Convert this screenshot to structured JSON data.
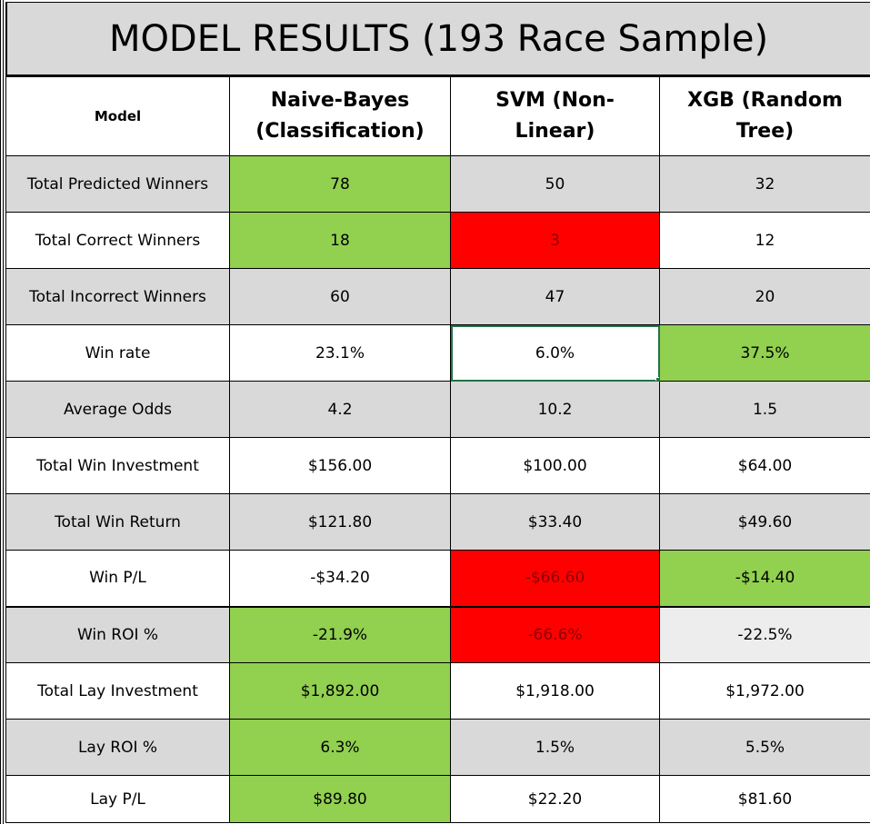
{
  "title": "MODEL RESULTS (193 Race Sample)",
  "header": {
    "model_label": "Model",
    "columns": [
      {
        "line1": "Naive-Bayes",
        "line2": "(Classification)"
      },
      {
        "line1": "SVM (Non-",
        "line2": "Linear)"
      },
      {
        "line1": "XGB (Random",
        "line2": "Tree)"
      }
    ]
  },
  "rows": [
    {
      "label": "Total Predicted Winners",
      "values": [
        "78",
        "50",
        "32"
      ],
      "highlights": [
        "green",
        "",
        ""
      ]
    },
    {
      "label": "Total Correct Winners",
      "values": [
        "18",
        "3",
        "12"
      ],
      "highlights": [
        "green",
        "red",
        ""
      ]
    },
    {
      "label": "Total Incorrect Winners",
      "values": [
        "60",
        "47",
        "20"
      ],
      "highlights": [
        "",
        "",
        ""
      ]
    },
    {
      "label": "Win rate",
      "values": [
        "23.1%",
        "6.0%",
        "37.5%"
      ],
      "highlights": [
        "",
        "selected",
        "green"
      ]
    },
    {
      "label": "Average Odds",
      "values": [
        "4.2",
        "10.2",
        "1.5"
      ],
      "highlights": [
        "",
        "",
        ""
      ]
    },
    {
      "label": "Total Win Investment",
      "values": [
        "$156.00",
        "$100.00",
        "$64.00"
      ],
      "highlights": [
        "",
        "",
        ""
      ]
    },
    {
      "label": "Total Win Return",
      "values": [
        "$121.80",
        "$33.40",
        "$49.60"
      ],
      "highlights": [
        "",
        "",
        ""
      ]
    },
    {
      "label": "Win P/L",
      "values": [
        "-$34.20",
        "-$66.60",
        "-$14.40"
      ],
      "highlights": [
        "",
        "red",
        "green"
      ]
    },
    {
      "label": "Win ROI %",
      "values": [
        "-21.9%",
        "-66.6%",
        "-22.5%"
      ],
      "highlights": [
        "green",
        "red",
        "lightgray"
      ]
    },
    {
      "label": "Total Lay Investment",
      "values": [
        "$1,892.00",
        "$1,918.00",
        "$1,972.00"
      ],
      "highlights": [
        "green",
        "",
        ""
      ]
    },
    {
      "label": "Lay ROI %",
      "values": [
        "6.3%",
        "1.5%",
        "5.5%"
      ],
      "highlights": [
        "green",
        "",
        ""
      ]
    },
    {
      "label": "Lay P/L",
      "values": [
        "$89.80",
        "$22.20",
        "$81.60"
      ],
      "highlights": [
        "green",
        "",
        ""
      ]
    }
  ],
  "colors": {
    "green": "#92d050",
    "red": "#ff0000",
    "shade": "#d9d9d9",
    "selection": "#217346"
  }
}
